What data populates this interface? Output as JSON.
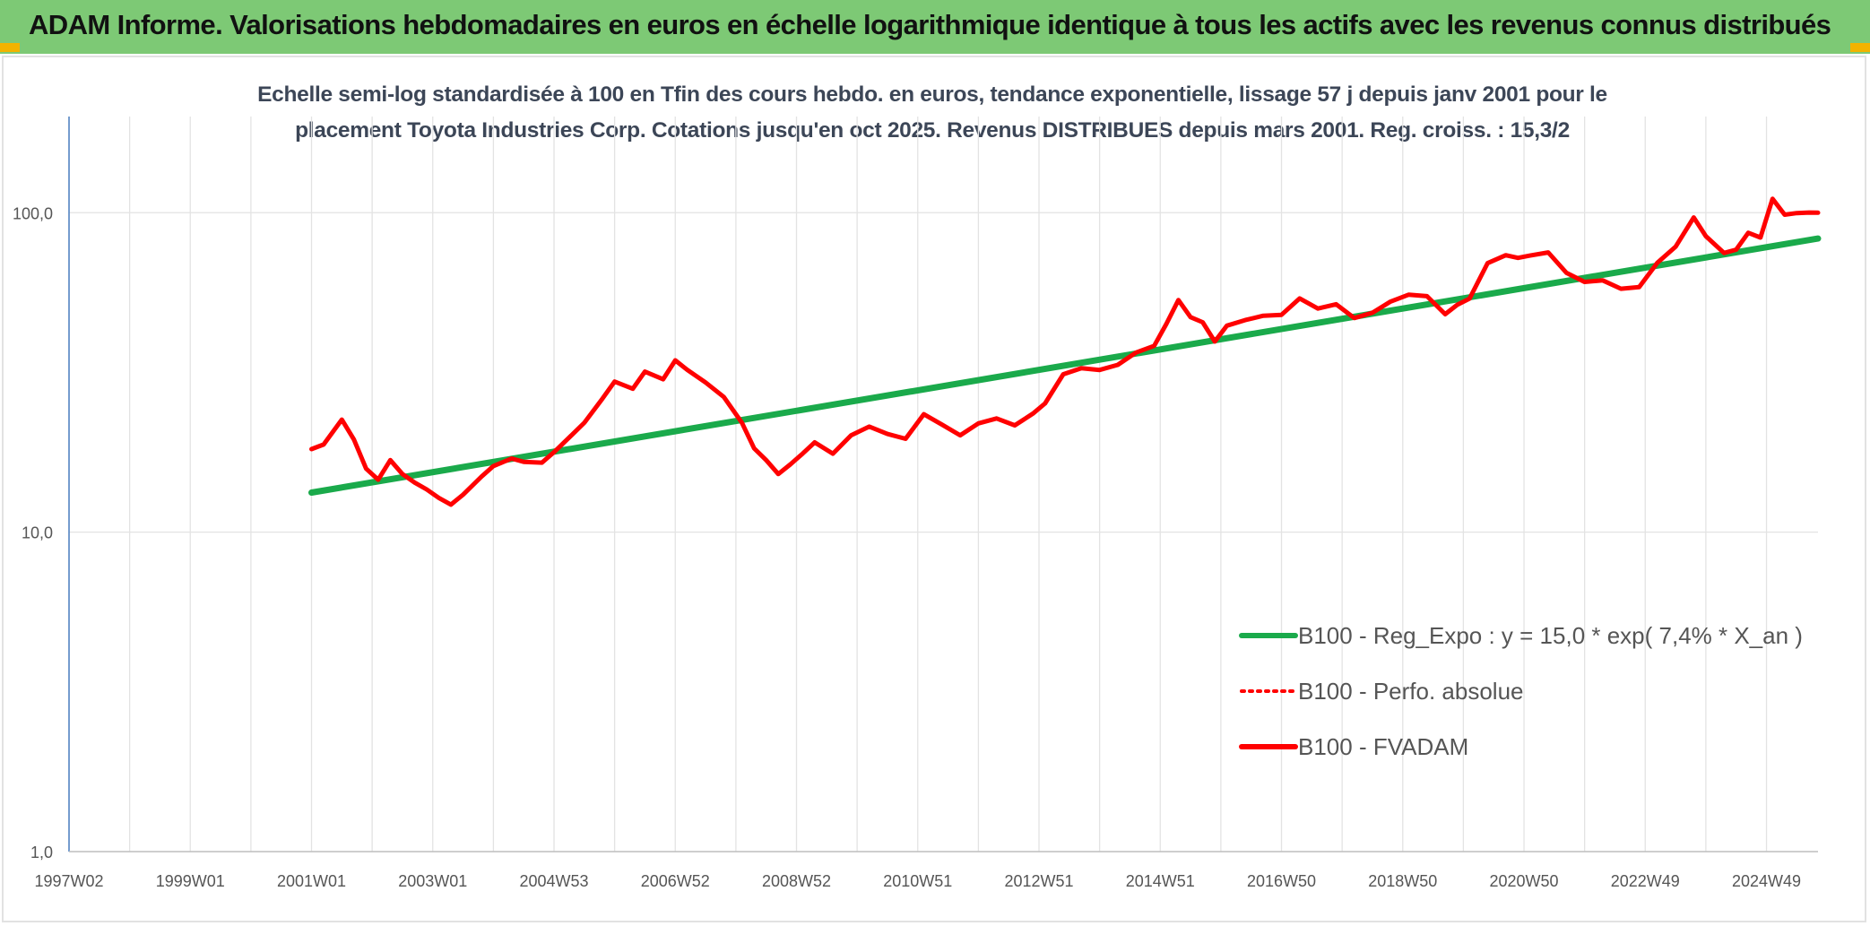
{
  "header": {
    "title": "ADAM Informe. Valorisations hebdomadaires en euros en échelle logarithmique identique à tous les actifs avec les revenus connus distribués"
  },
  "chart_data": {
    "type": "line",
    "title_lines": [
      "Echelle semi-log standardisée à 100 en Tfin des cours hebdo. en euros, tendance exponentielle, lissage 57 j depuis janv 2001 pour le",
      "placement Toyota Industries Corp. Cotations jusqu'en oct 2025. Revenus DISTRIBUES depuis mars 2001. Reg. croiss. : 15,3/2"
    ],
    "y_scale": "log",
    "ylim": [
      1,
      200
    ],
    "y_ticks": [
      {
        "value": 1,
        "label": "1,0"
      },
      {
        "value": 10,
        "label": "10,0"
      },
      {
        "value": 100,
        "label": "100,0"
      }
    ],
    "xlim": [
      1997.0,
      2025.85
    ],
    "x_ticks": [
      {
        "value": 1997.0,
        "label": "1997W02"
      },
      {
        "value": 1999.0,
        "label": "1999W01"
      },
      {
        "value": 2001.0,
        "label": "2001W01"
      },
      {
        "value": 2003.0,
        "label": "2003W01"
      },
      {
        "value": 2005.0,
        "label": "2004W53"
      },
      {
        "value": 2007.0,
        "label": "2006W52"
      },
      {
        "value": 2009.0,
        "label": "2008W52"
      },
      {
        "value": 2011.0,
        "label": "2010W51"
      },
      {
        "value": 2013.0,
        "label": "2012W51"
      },
      {
        "value": 2015.0,
        "label": "2014W51"
      },
      {
        "value": 2017.0,
        "label": "2016W50"
      },
      {
        "value": 2019.0,
        "label": "2018W50"
      },
      {
        "value": 2021.0,
        "label": "2020W50"
      },
      {
        "value": 2023.0,
        "label": "2022W49"
      },
      {
        "value": 2025.0,
        "label": "2024W49"
      }
    ],
    "grid": true,
    "legend_position": "bottom-right",
    "series": [
      {
        "name": "B100 - Reg_Expo : y = 15,0 * exp( 7,4% *  X_an )",
        "color": "#1aaa4b",
        "style": "solid",
        "x": [
          2001.0,
          2025.85
        ],
        "y": [
          13.3,
          83
        ]
      },
      {
        "name": "B100 - Perfo. absolue",
        "color": "#ff0000",
        "style": "dotted",
        "x": [],
        "y": []
      },
      {
        "name": "B100 - FVADAM",
        "color": "#ff0000",
        "style": "solid",
        "x": [
          2001.0,
          2001.2,
          2001.5,
          2001.7,
          2001.9,
          2002.1,
          2002.3,
          2002.5,
          2002.7,
          2002.9,
          2003.1,
          2003.3,
          2003.5,
          2003.8,
          2004.0,
          2004.3,
          2004.5,
          2004.8,
          2005.0,
          2005.3,
          2005.5,
          2005.8,
          2006.0,
          2006.3,
          2006.5,
          2006.8,
          2007.0,
          2007.2,
          2007.5,
          2007.8,
          2008.1,
          2008.3,
          2008.5,
          2008.7,
          2008.9,
          2009.1,
          2009.3,
          2009.6,
          2009.9,
          2010.2,
          2010.5,
          2010.8,
          2011.1,
          2011.4,
          2011.7,
          2012.0,
          2012.3,
          2012.6,
          2012.9,
          2013.1,
          2013.4,
          2013.7,
          2014.0,
          2014.3,
          2014.6,
          2014.9,
          2015.1,
          2015.3,
          2015.5,
          2015.7,
          2015.9,
          2016.1,
          2016.4,
          2016.7,
          2017.0,
          2017.3,
          2017.6,
          2017.9,
          2018.2,
          2018.5,
          2018.8,
          2019.1,
          2019.4,
          2019.7,
          2019.9,
          2020.1,
          2020.4,
          2020.7,
          2020.9,
          2021.1,
          2021.4,
          2021.7,
          2022.0,
          2022.3,
          2022.6,
          2022.9,
          2023.2,
          2023.5,
          2023.8,
          2024.0,
          2024.3,
          2024.5,
          2024.7,
          2024.9,
          2025.1,
          2025.3,
          2025.5,
          2025.7,
          2025.85
        ],
        "y": [
          18.2,
          18.8,
          22.5,
          19.5,
          15.8,
          14.6,
          16.8,
          15.2,
          14.3,
          13.6,
          12.8,
          12.2,
          13.1,
          14.9,
          16.1,
          17.0,
          16.6,
          16.5,
          17.8,
          20.2,
          22.0,
          26.2,
          29.6,
          28.1,
          31.8,
          30.1,
          34.5,
          32.2,
          29.4,
          26.5,
          22.0,
          18.3,
          16.8,
          15.2,
          16.3,
          17.6,
          19.1,
          17.6,
          20.1,
          21.4,
          20.3,
          19.6,
          23.4,
          21.7,
          20.1,
          21.9,
          22.7,
          21.6,
          23.5,
          25.3,
          31.2,
          32.6,
          32.2,
          33.4,
          36.5,
          38.3,
          44.8,
          53.3,
          47.1,
          45.4,
          39.5,
          44.3,
          46.1,
          47.6,
          47.9,
          53.9,
          50.1,
          51.7,
          46.8,
          48.6,
          52.7,
          55.4,
          54.8,
          48.1,
          51.5,
          53.8,
          69.5,
          73.6,
          72.2,
          73.4,
          75.1,
          64.8,
          60.7,
          61.4,
          57.8,
          58.5,
          69.7,
          78.2,
          96.6,
          84.4,
          74.8,
          76.6,
          86.5,
          83.6,
          110.5,
          98.6,
          99.7,
          100.1,
          100.0
        ]
      }
    ]
  }
}
